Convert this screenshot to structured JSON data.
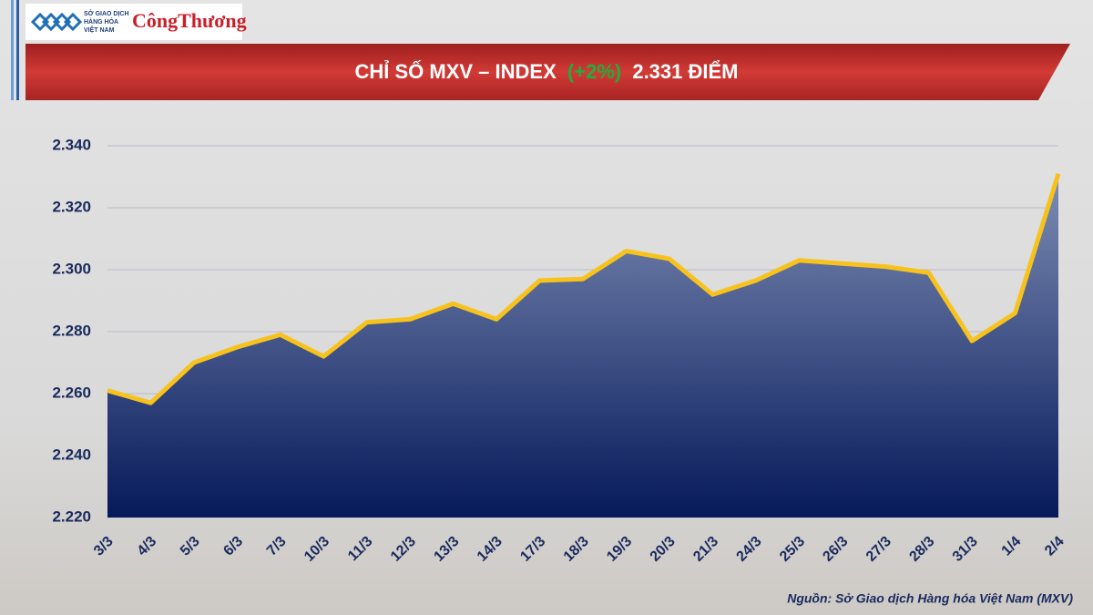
{
  "logo": {
    "org": [
      "SỞ GIAO DỊCH",
      "HÀNG HÓA",
      "VIỆT NAM"
    ],
    "brand": "CôngThương"
  },
  "chart_data": {
    "type": "area",
    "title": {
      "main": "CHỈ SỐ MXV – INDEX",
      "change": "(+2%)",
      "level": "2.331 ĐIỂM"
    },
    "categories": [
      "3/3",
      "4/3",
      "5/3",
      "6/3",
      "7/3",
      "10/3",
      "11/3",
      "12/3",
      "13/3",
      "14/3",
      "17/3",
      "18/3",
      "19/3",
      "20/3",
      "21/3",
      "24/3",
      "25/3",
      "26/3",
      "27/3",
      "28/3",
      "31/3",
      "1/4",
      "2/4"
    ],
    "values": [
      2261,
      2257,
      2270,
      2275,
      2279,
      2272,
      2283,
      2284,
      2289,
      2284,
      2296.5,
      2297,
      2306,
      2303.5,
      2292,
      2296.5,
      2303,
      2302,
      2301,
      2299,
      2277,
      2286,
      2331
    ],
    "color": "#f7c21c",
    "fill_top": "#7d8db4",
    "fill_bottom": "#06195a",
    "change_color": "#1fae3c",
    "ylim": [
      2220,
      2340
    ],
    "yticks": [
      {
        "value": 2220,
        "label": "2.220"
      },
      {
        "value": 2240,
        "label": "2.240"
      },
      {
        "value": 2260,
        "label": "2.260"
      },
      {
        "value": 2280,
        "label": "2.280"
      },
      {
        "value": 2300,
        "label": "2.300"
      },
      {
        "value": 2320,
        "label": "2.320"
      },
      {
        "value": 2340,
        "label": "2.340"
      }
    ],
    "grid": true,
    "source": "Nguồn: Sở Giao dịch Hàng hóa Việt Nam (MXV)"
  }
}
